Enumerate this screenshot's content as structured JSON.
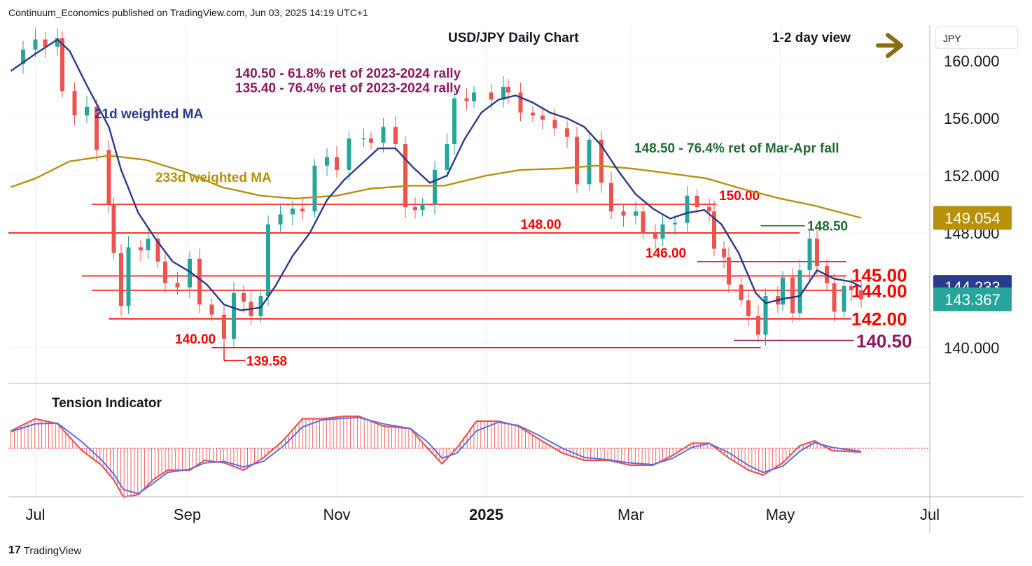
{
  "header": {
    "published": "Continuum_Economics published on TradingView.com, Jun 03, 2025 14:19 UTC+1"
  },
  "currency_button": "JPY",
  "brand": {
    "logo": "17",
    "name": "TradingView"
  },
  "colors": {
    "up": "#26a69a",
    "down": "#ef5350",
    "level": "#ff0000",
    "ma21": "#2a3a8c",
    "ma233": "#b8900a",
    "fib": "#8b1a5e",
    "green_note": "#1e6b32",
    "arrow": "#8b6b10"
  },
  "chart_data": [
    {
      "type": "candlestick",
      "title": "USD/JPY Daily Chart",
      "view_label": "1-2 day view",
      "view_direction": "sideways-right",
      "ylim": [
        137.5,
        162.5
      ],
      "y_ticks": [
        140.0,
        148.0,
        152.0,
        156.0,
        160.0
      ],
      "y_tick_labels": [
        "140.000",
        "148.000",
        "152.000",
        "156.000",
        "160.000"
      ],
      "x_ticks": [
        "Jul",
        "Sep",
        "Nov",
        "2025",
        "Mar",
        "May",
        "Jul"
      ],
      "x_tick_dates": [
        "2024-07-01",
        "2024-09-01",
        "2024-11-01",
        "2025-01-01",
        "2025-03-01",
        "2025-05-01",
        "2025-07-01"
      ],
      "x_range": [
        "2024-06-20",
        "2025-07-01"
      ],
      "price_labels": [
        {
          "value": 149.054,
          "text": "149.054",
          "kind": "ma233"
        },
        {
          "value": 144.233,
          "text": "144.233",
          "kind": "ma21"
        },
        {
          "value": 143.367,
          "text": "143.367",
          "kind": "last"
        }
      ],
      "levels": [
        {
          "value": 150.0,
          "label": "150.00",
          "from": "2024-07-24",
          "to": "2025-04-05",
          "color": "level"
        },
        {
          "value": 148.0,
          "label": "148.00",
          "from": "2024-06-20",
          "to": "2025-05-09",
          "color": "level"
        },
        {
          "value": 146.0,
          "label": "146.00",
          "from": "2025-03-28",
          "to": "2025-05-28",
          "color": "level"
        },
        {
          "value": 145.0,
          "label": "145.00",
          "from": "2024-07-20",
          "to": "2025-05-28",
          "color": "level"
        },
        {
          "value": 144.0,
          "label": "144.00",
          "from": "2024-07-24",
          "to": "2025-05-28",
          "color": "level"
        },
        {
          "value": 142.0,
          "label": "142.00",
          "from": "2024-07-31",
          "to": "2025-05-30",
          "color": "level"
        },
        {
          "value": 140.0,
          "label": "140.00",
          "from": "2024-09-11",
          "to": "2025-04-23",
          "color": "level"
        },
        {
          "value": 140.5,
          "label": "140.50",
          "from": "2025-04-12",
          "to": "2025-05-31",
          "color": "fib"
        },
        {
          "value": 148.5,
          "label": "148.50",
          "from": "2025-04-23",
          "to": "2025-05-11",
          "color": "green_note"
        }
      ],
      "low_marker": {
        "value": 139.58,
        "label": "139.58",
        "date": "2024-09-16"
      },
      "annotations": [
        {
          "text": "140.50 - 61.8% ret of 2023-2024 rally",
          "color": "fib"
        },
        {
          "text": "135.40 - 76.4% ret of 2023-2024 rally",
          "color": "fib"
        },
        {
          "text": "21d weighted MA",
          "color": "ma21"
        },
        {
          "text": "233d weighted MA",
          "color": "ma233"
        },
        {
          "text": "148.50 - 76.4% ret of Mar-Apr fall",
          "color": "green_note"
        }
      ],
      "close_series": [
        [
          "2024-06-21",
          159.8
        ],
        [
          "2024-06-26",
          160.8
        ],
        [
          "2024-07-01",
          161.5
        ],
        [
          "2024-07-05",
          161.0
        ],
        [
          "2024-07-10",
          161.6
        ],
        [
          "2024-07-12",
          157.9
        ],
        [
          "2024-07-17",
          156.2
        ],
        [
          "2024-07-22",
          156.8
        ],
        [
          "2024-07-26",
          153.8
        ],
        [
          "2024-07-31",
          150.0
        ],
        [
          "2024-08-02",
          146.6
        ],
        [
          "2024-08-05",
          142.9
        ],
        [
          "2024-08-08",
          147.0
        ],
        [
          "2024-08-13",
          146.8
        ],
        [
          "2024-08-16",
          147.6
        ],
        [
          "2024-08-20",
          146.0
        ],
        [
          "2024-08-23",
          144.5
        ],
        [
          "2024-08-28",
          144.2
        ],
        [
          "2024-09-02",
          146.2
        ],
        [
          "2024-09-06",
          143.0
        ],
        [
          "2024-09-11",
          142.3
        ],
        [
          "2024-09-16",
          140.6
        ],
        [
          "2024-09-20",
          143.8
        ],
        [
          "2024-09-24",
          143.2
        ],
        [
          "2024-09-27",
          142.2
        ],
        [
          "2024-10-01",
          143.6
        ],
        [
          "2024-10-04",
          148.6
        ],
        [
          "2024-10-09",
          149.3
        ],
        [
          "2024-10-14",
          149.7
        ],
        [
          "2024-10-18",
          149.5
        ],
        [
          "2024-10-23",
          152.7
        ],
        [
          "2024-10-28",
          153.3
        ],
        [
          "2024-11-01",
          152.4
        ],
        [
          "2024-11-06",
          154.6
        ],
        [
          "2024-11-12",
          154.6
        ],
        [
          "2024-11-15",
          154.3
        ],
        [
          "2024-11-20",
          155.4
        ],
        [
          "2024-11-25",
          154.2
        ],
        [
          "2024-11-29",
          149.8
        ],
        [
          "2024-12-03",
          149.6
        ],
        [
          "2024-12-06",
          150.0
        ],
        [
          "2024-12-11",
          152.4
        ],
        [
          "2024-12-16",
          154.2
        ],
        [
          "2024-12-19",
          157.4
        ],
        [
          "2024-12-24",
          157.2
        ],
        [
          "2024-12-27",
          157.8
        ],
        [
          "2025-01-03",
          157.3
        ],
        [
          "2025-01-08",
          158.2
        ],
        [
          "2025-01-10",
          157.8
        ],
        [
          "2025-01-15",
          156.4
        ],
        [
          "2025-01-20",
          156.2
        ],
        [
          "2025-01-24",
          155.9
        ],
        [
          "2025-01-29",
          155.3
        ],
        [
          "2025-02-03",
          154.7
        ],
        [
          "2025-02-07",
          151.4
        ],
        [
          "2025-02-12",
          154.5
        ],
        [
          "2025-02-17",
          151.5
        ],
        [
          "2025-02-21",
          149.5
        ],
        [
          "2025-02-26",
          149.2
        ],
        [
          "2025-03-03",
          149.5
        ],
        [
          "2025-03-06",
          148.0
        ],
        [
          "2025-03-11",
          147.6
        ],
        [
          "2025-03-14",
          148.6
        ],
        [
          "2025-03-19",
          148.7
        ],
        [
          "2025-03-24",
          150.6
        ],
        [
          "2025-03-28",
          149.8
        ],
        [
          "2025-04-02",
          149.5
        ],
        [
          "2025-04-04",
          146.9
        ],
        [
          "2025-04-08",
          146.3
        ],
        [
          "2025-04-10",
          144.4
        ],
        [
          "2025-04-15",
          143.3
        ],
        [
          "2025-04-18",
          142.2
        ],
        [
          "2025-04-22",
          140.9
        ],
        [
          "2025-04-25",
          143.6
        ],
        [
          "2025-04-30",
          143.0
        ],
        [
          "2025-05-02",
          144.9
        ],
        [
          "2025-05-06",
          142.4
        ],
        [
          "2025-05-09",
          145.4
        ],
        [
          "2025-05-13",
          147.6
        ],
        [
          "2025-05-16",
          145.7
        ],
        [
          "2025-05-20",
          144.5
        ],
        [
          "2025-05-23",
          142.5
        ],
        [
          "2025-05-27",
          144.3
        ],
        [
          "2025-05-30",
          144.0
        ],
        [
          "2025-06-03",
          143.367
        ]
      ],
      "ma21_series": [
        [
          "2024-06-21",
          159.3
        ],
        [
          "2024-07-01",
          160.5
        ],
        [
          "2024-07-10",
          161.5
        ],
        [
          "2024-07-15",
          160.7
        ],
        [
          "2024-07-22",
          158.3
        ],
        [
          "2024-07-31",
          155.4
        ],
        [
          "2024-08-05",
          152.4
        ],
        [
          "2024-08-12",
          149.4
        ],
        [
          "2024-08-19",
          147.6
        ],
        [
          "2024-08-26",
          146.0
        ],
        [
          "2024-09-02",
          145.3
        ],
        [
          "2024-09-09",
          144.4
        ],
        [
          "2024-09-16",
          143.0
        ],
        [
          "2024-09-23",
          142.6
        ],
        [
          "2024-10-01",
          142.8
        ],
        [
          "2024-10-07",
          144.3
        ],
        [
          "2024-10-14",
          146.4
        ],
        [
          "2024-10-21",
          148.0
        ],
        [
          "2024-10-28",
          150.3
        ],
        [
          "2024-11-04",
          151.7
        ],
        [
          "2024-11-11",
          152.8
        ],
        [
          "2024-11-18",
          153.9
        ],
        [
          "2024-11-25",
          153.9
        ],
        [
          "2024-12-02",
          152.6
        ],
        [
          "2024-12-09",
          151.5
        ],
        [
          "2024-12-16",
          152.0
        ],
        [
          "2024-12-23",
          154.5
        ],
        [
          "2024-12-30",
          156.4
        ],
        [
          "2025-01-06",
          157.3
        ],
        [
          "2025-01-13",
          157.6
        ],
        [
          "2025-01-20",
          157.1
        ],
        [
          "2025-01-27",
          156.4
        ],
        [
          "2025-02-03",
          156.0
        ],
        [
          "2025-02-10",
          155.4
        ],
        [
          "2025-02-17",
          154.1
        ],
        [
          "2025-02-24",
          152.3
        ],
        [
          "2025-03-03",
          150.7
        ],
        [
          "2025-03-10",
          149.7
        ],
        [
          "2025-03-17",
          149.0
        ],
        [
          "2025-03-24",
          149.4
        ],
        [
          "2025-03-31",
          149.6
        ],
        [
          "2025-04-07",
          148.6
        ],
        [
          "2025-04-14",
          146.6
        ],
        [
          "2025-04-21",
          143.8
        ],
        [
          "2025-04-25",
          143.1
        ],
        [
          "2025-05-02",
          143.4
        ],
        [
          "2025-05-09",
          143.6
        ],
        [
          "2025-05-16",
          145.4
        ],
        [
          "2025-05-23",
          144.8
        ],
        [
          "2025-05-30",
          144.6
        ],
        [
          "2025-06-03",
          144.233
        ]
      ],
      "ma233_series": [
        [
          "2024-06-21",
          151.2
        ],
        [
          "2024-07-01",
          151.8
        ],
        [
          "2024-07-15",
          153.0
        ],
        [
          "2024-07-31",
          153.4
        ],
        [
          "2024-08-15",
          153.1
        ],
        [
          "2024-09-01",
          152.2
        ],
        [
          "2024-09-15",
          151.2
        ],
        [
          "2024-10-01",
          150.6
        ],
        [
          "2024-10-15",
          150.4
        ],
        [
          "2024-11-01",
          150.6
        ],
        [
          "2024-11-15",
          151.1
        ],
        [
          "2024-12-01",
          151.3
        ],
        [
          "2024-12-15",
          151.3
        ],
        [
          "2025-01-01",
          152.0
        ],
        [
          "2025-01-15",
          152.4
        ],
        [
          "2025-02-01",
          152.5
        ],
        [
          "2025-02-15",
          152.7
        ],
        [
          "2025-03-01",
          152.5
        ],
        [
          "2025-03-15",
          152.2
        ],
        [
          "2025-04-01",
          151.8
        ],
        [
          "2025-04-15",
          151.1
        ],
        [
          "2025-05-01",
          150.4
        ],
        [
          "2025-05-15",
          149.9
        ],
        [
          "2025-06-03",
          149.054
        ]
      ]
    },
    {
      "type": "oscillator",
      "title": "Tension Indicator",
      "ylim": [
        -1.0,
        1.0
      ],
      "zero_line": 0.0,
      "osc_series": [
        [
          "2024-06-21",
          0.35
        ],
        [
          "2024-07-01",
          0.6
        ],
        [
          "2024-07-10",
          0.5
        ],
        [
          "2024-07-20",
          -0.05
        ],
        [
          "2024-07-28",
          -0.35
        ],
        [
          "2024-08-02",
          -0.65
        ],
        [
          "2024-08-06",
          -1.0
        ],
        [
          "2024-08-12",
          -0.95
        ],
        [
          "2024-08-18",
          -0.65
        ],
        [
          "2024-08-24",
          -0.45
        ],
        [
          "2024-09-02",
          -0.45
        ],
        [
          "2024-09-08",
          -0.25
        ],
        [
          "2024-09-16",
          -0.3
        ],
        [
          "2024-09-24",
          -0.45
        ],
        [
          "2024-10-02",
          -0.2
        ],
        [
          "2024-10-10",
          0.15
        ],
        [
          "2024-10-18",
          0.6
        ],
        [
          "2024-10-26",
          0.6
        ],
        [
          "2024-11-04",
          0.65
        ],
        [
          "2024-11-10",
          0.65
        ],
        [
          "2024-11-20",
          0.45
        ],
        [
          "2024-12-01",
          0.4
        ],
        [
          "2024-12-08",
          0.0
        ],
        [
          "2024-12-14",
          -0.32
        ],
        [
          "2024-12-20",
          0.0
        ],
        [
          "2024-12-28",
          0.55
        ],
        [
          "2025-01-06",
          0.55
        ],
        [
          "2025-01-14",
          0.45
        ],
        [
          "2025-01-22",
          0.2
        ],
        [
          "2025-02-01",
          -0.1
        ],
        [
          "2025-02-10",
          -0.25
        ],
        [
          "2025-02-20",
          -0.25
        ],
        [
          "2025-03-01",
          -0.35
        ],
        [
          "2025-03-10",
          -0.35
        ],
        [
          "2025-03-18",
          -0.15
        ],
        [
          "2025-03-26",
          0.1
        ],
        [
          "2025-04-02",
          0.1
        ],
        [
          "2025-04-10",
          -0.2
        ],
        [
          "2025-04-18",
          -0.45
        ],
        [
          "2025-04-24",
          -0.55
        ],
        [
          "2025-05-02",
          -0.3
        ],
        [
          "2025-05-09",
          0.05
        ],
        [
          "2025-05-15",
          0.15
        ],
        [
          "2025-05-22",
          -0.05
        ],
        [
          "2025-06-03",
          -0.08
        ]
      ]
    }
  ]
}
